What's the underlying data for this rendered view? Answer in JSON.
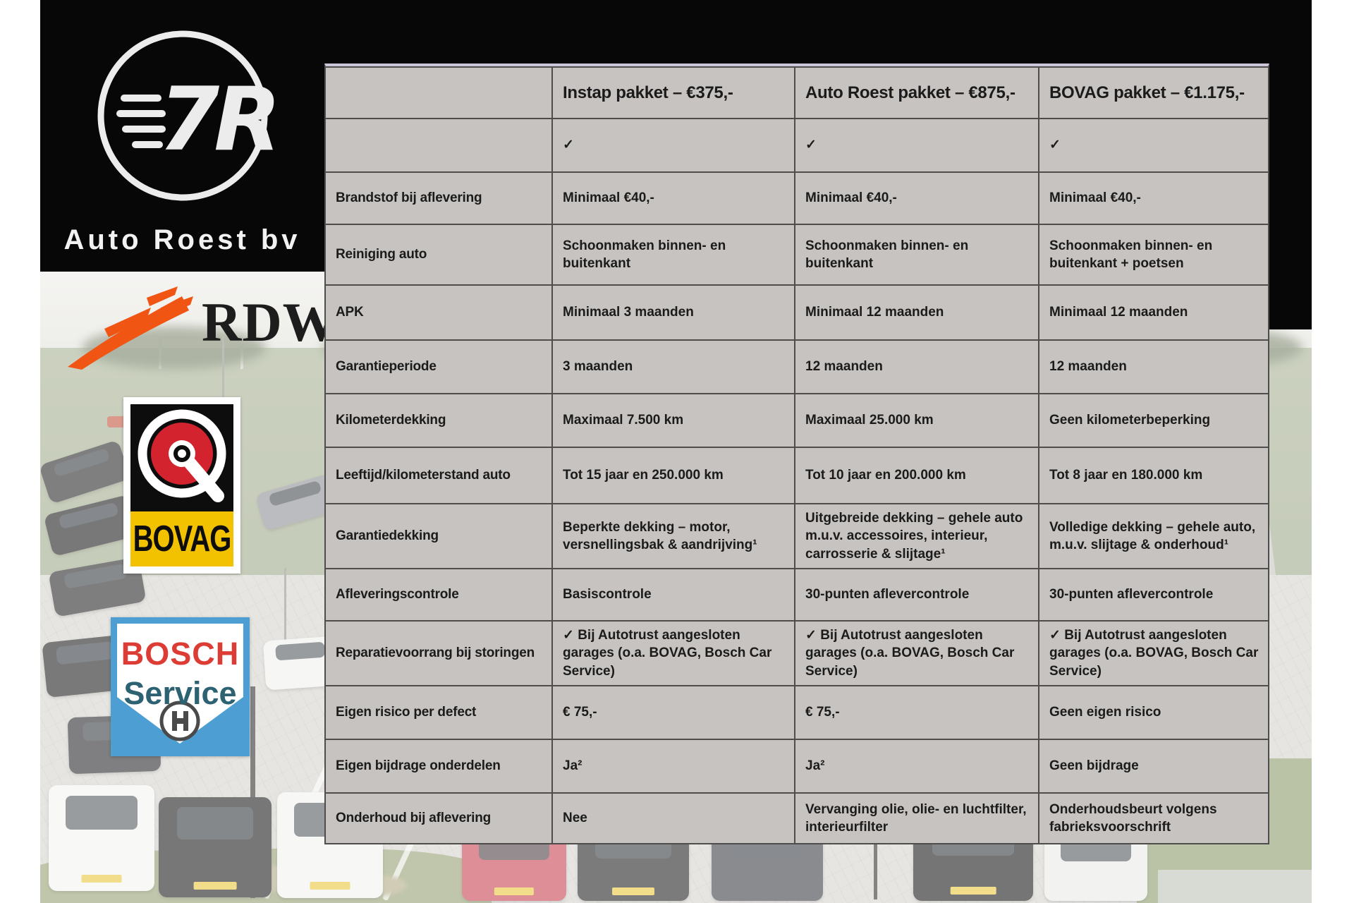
{
  "branding": {
    "dealer_name": "Auto Roest bv",
    "monogram": "7R"
  },
  "badges": {
    "rdw": "RDW",
    "bovag": "BOVAG",
    "bosch_top": "BOSCH",
    "bosch_bottom": "Service"
  },
  "colors": {
    "banner_bg": "#070707",
    "table_cell_bg": "#c6c3c0",
    "table_border": "#4e4d4c",
    "table_text": "#1b1b1b",
    "rdw_orange": "#f05514",
    "bovag_red": "#d2232f",
    "bovag_yellow": "#f2c200",
    "bosch_blue": "#4d9ed2",
    "bosch_red": "#dd3c35",
    "bosch_teal": "#2c6272"
  },
  "table": {
    "columns": [
      "",
      "Instap pakket – €375,-",
      "Auto Roest pakket – €875,-",
      "BOVAG pakket – €1.175,-"
    ],
    "rows": [
      {
        "label": "",
        "values": [
          "✓",
          "✓",
          "✓"
        ]
      },
      {
        "label": "Brandstof bij aflevering",
        "values": [
          "Minimaal €40,-",
          "Minimaal €40,-",
          "Minimaal €40,-"
        ]
      },
      {
        "label": "Reiniging auto",
        "values": [
          "Schoonmaken binnen- en buitenkant",
          "Schoonmaken binnen- en buitenkant",
          "Schoonmaken binnen- en buitenkant + poetsen"
        ]
      },
      {
        "label": "APK",
        "values": [
          "Minimaal 3 maanden",
          "Minimaal 12 maanden",
          "Minimaal 12 maanden"
        ]
      },
      {
        "label": "Garantieperiode",
        "values": [
          "3 maanden",
          "12 maanden",
          "12 maanden"
        ]
      },
      {
        "label": "Kilometerdekking",
        "values": [
          "Maximaal 7.500 km",
          "Maximaal 25.000 km",
          "Geen kilometerbeperking"
        ]
      },
      {
        "label": "Leeftijd/kilometerstand auto",
        "values": [
          "Tot 15 jaar en 250.000 km",
          "Tot 10 jaar en 200.000 km",
          "Tot 8 jaar en 180.000 km"
        ]
      },
      {
        "label": "Garantiedekking",
        "values": [
          "Beperkte dekking – motor, versnellingsbak & aandrijving¹",
          "Uitgebreide dekking – gehele auto m.u.v. accessoires, interieur, carrosserie & slijtage¹",
          "Volledige dekking – gehele auto, m.u.v. slijtage & onderhoud¹"
        ]
      },
      {
        "label": "Afleveringscontrole",
        "values": [
          "Basiscontrole",
          "30-punten aflevercontrole",
          "30-punten aflevercontrole"
        ]
      },
      {
        "label": "Reparatievoorrang bij storingen",
        "values": [
          "✓ Bij Autotrust aangesloten garages (o.a. BOVAG, Bosch Car Service)",
          "✓ Bij Autotrust aangesloten garages (o.a. BOVAG, Bosch Car Service)",
          "✓ Bij Autotrust aangesloten garages (o.a. BOVAG, Bosch Car Service)"
        ]
      },
      {
        "label": "Eigen risico per defect",
        "values": [
          "€ 75,-",
          "€ 75,-",
          "Geen eigen risico"
        ]
      },
      {
        "label": "Eigen bijdrage onderdelen",
        "values": [
          "Ja²",
          "Ja²",
          "Geen bijdrage"
        ]
      },
      {
        "label": "Onderhoud bij aflevering",
        "values": [
          "Nee",
          "Vervanging olie, olie- en luchtfilter, interieurfilter",
          "Onderhoudsbeurt volgens fabrieksvoorschrift"
        ]
      }
    ]
  }
}
